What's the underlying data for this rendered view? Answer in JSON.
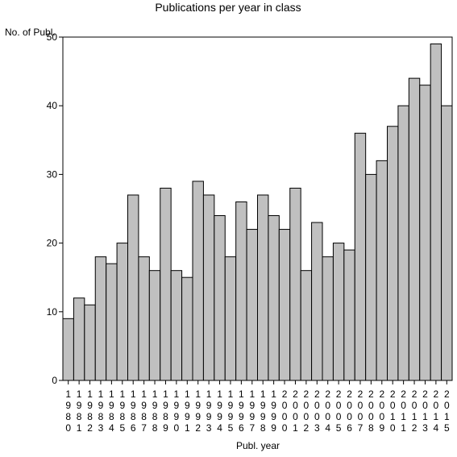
{
  "chart_data": {
    "type": "bar",
    "title": "Publications per year in class",
    "ylabel": "No. of Publ.",
    "xlabel": "Publ. year",
    "categories": [
      "1980",
      "1981",
      "1982",
      "1983",
      "1984",
      "1985",
      "1986",
      "1987",
      "1988",
      "1989",
      "1990",
      "1991",
      "1992",
      "1993",
      "1994",
      "1995",
      "1996",
      "1997",
      "1998",
      "1999",
      "2000",
      "2001",
      "2002",
      "2003",
      "2004",
      "2005",
      "2006",
      "2007",
      "2008",
      "2009",
      "2010",
      "2011",
      "2012",
      "2013",
      "2014",
      "2015"
    ],
    "values": [
      9,
      12,
      11,
      18,
      17,
      20,
      27,
      18,
      16,
      28,
      16,
      15,
      29,
      27,
      24,
      18,
      26,
      22,
      27,
      24,
      22,
      28,
      16,
      23,
      18,
      20,
      19,
      36,
      30,
      32,
      37,
      40,
      44,
      43,
      49,
      40
    ],
    "ylim": [
      0,
      50
    ],
    "yticks": [
      0,
      10,
      20,
      30,
      40,
      50
    ],
    "grid": false,
    "colors": {
      "bar": "#c0c0c0",
      "stroke": "#000000"
    }
  }
}
